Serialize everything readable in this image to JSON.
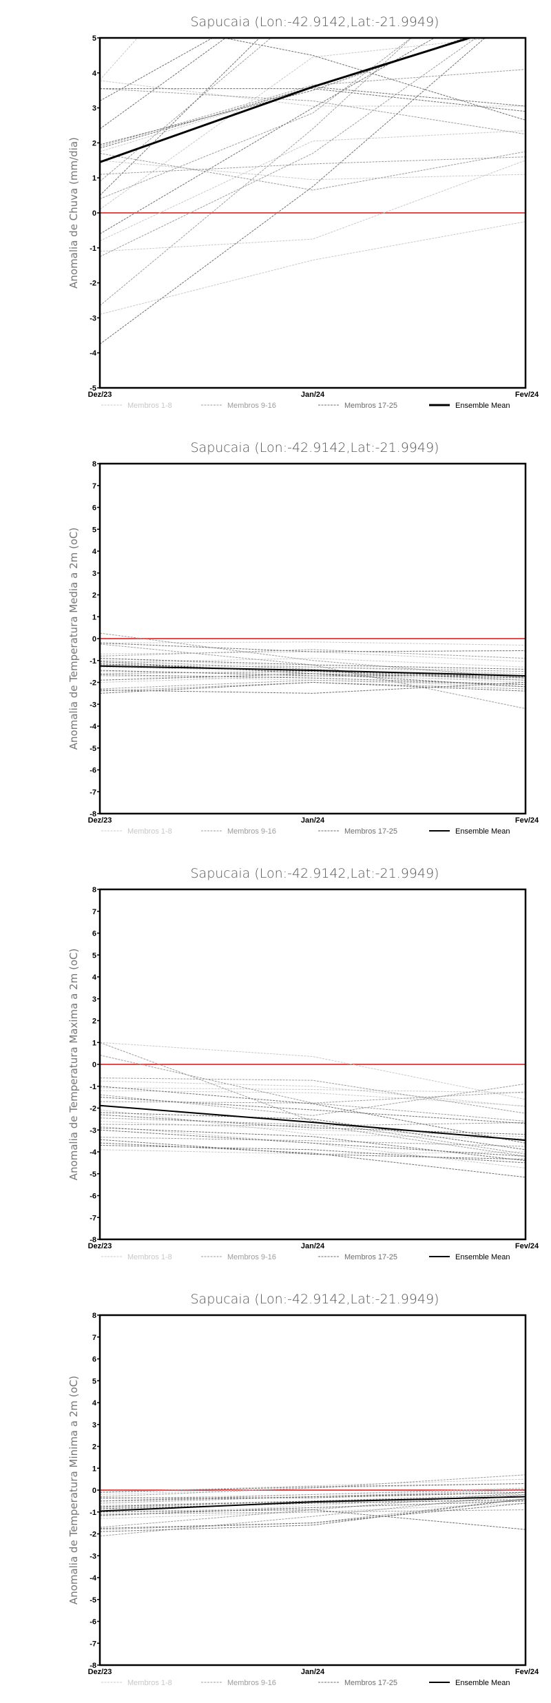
{
  "colors": {
    "light": "#c8c8c8",
    "medium": "#9c9c9c",
    "dark": "#6e6e6e",
    "mean": "#000000",
    "zero": "#e8484a"
  },
  "legend": [
    "Membros 1-8",
    "Membros 9-16",
    "Membros 17-25",
    "Ensemble Mean"
  ],
  "chart_data": [
    {
      "type": "line",
      "title": "Sapucaia (Lon:-42.9142,Lat:-21.9949)",
      "ylabel": "Anomalia de Chuva (mm/dia)",
      "categories": [
        "Dez/23",
        "Jan/24",
        "Fev/24"
      ],
      "ylim": [
        -5,
        5
      ],
      "yticks": [
        "-5",
        "-4",
        "-3",
        "-2",
        "-1",
        "0",
        "1",
        "2",
        "3",
        "4",
        "5"
      ],
      "mean": [
        1.45,
        3.6,
        5.5
      ],
      "mean_width": 3,
      "members": [
        [
          3.8,
          10.6,
          14
        ],
        [
          3.78,
          3.05,
          3.05
        ],
        [
          1.5,
          0.95,
          1.1
        ],
        [
          0.1,
          4.45,
          5.1
        ],
        [
          -0.8,
          2.05,
          2.35
        ],
        [
          -1.1,
          -0.75,
          1.5
        ],
        [
          -2.9,
          -1.35,
          -0.25
        ],
        [
          1.75,
          3.6,
          5.5
        ],
        [
          3.55,
          3.2,
          2.25
        ],
        [
          1.9,
          3.65,
          4.1
        ],
        [
          1.1,
          1.4,
          1.6
        ],
        [
          0.4,
          2.85,
          7.5
        ],
        [
          -1.25,
          1.7,
          6.0
        ],
        [
          -2.65,
          2.4,
          8.0
        ],
        [
          1.7,
          0.65,
          1.75
        ],
        [
          0.9,
          6.0,
          9.0
        ],
        [
          3.2,
          6.6,
          9.0
        ],
        [
          2.4,
          6.8,
          10
        ],
        [
          5.7,
          4.5,
          2.65
        ],
        [
          3.55,
          3.55,
          2.9
        ],
        [
          1.95,
          3.5,
          5.6
        ],
        [
          0.5,
          6.5,
          10
        ],
        [
          -3.75,
          0.75,
          6.0
        ],
        [
          1.85,
          3.6,
          3.05
        ],
        [
          -0.6,
          3.0,
          6.5
        ]
      ]
    },
    {
      "type": "line",
      "title": "Sapucaia (Lon:-42.9142,Lat:-21.9949)",
      "ylabel": "Anomalia de Temperatura Media a 2m (oC)",
      "categories": [
        "Dez/23",
        "Jan/24",
        "Fev/24"
      ],
      "ylim": [
        -8,
        8
      ],
      "yticks": [
        "-8",
        "-7",
        "-6",
        "-5",
        "-4",
        "-3",
        "-2",
        "-1",
        "0",
        "1",
        "2",
        "3",
        "4",
        "5",
        "6",
        "7",
        "8"
      ],
      "mean": [
        -1.25,
        -1.45,
        -1.7
      ],
      "mean_width": 2,
      "members": [
        [
          -0.2,
          -0.15,
          -0.3
        ],
        [
          -0.7,
          -0.6,
          -1.05
        ],
        [
          -1.1,
          -0.9,
          -1.3
        ],
        [
          -1.5,
          -1.6,
          -2.0
        ],
        [
          -1.7,
          -1.9,
          -2.2
        ],
        [
          -0.9,
          -1.3,
          -1.6
        ],
        [
          -2.0,
          -1.7,
          -1.9
        ],
        [
          -1.3,
          -1.5,
          -1.6
        ],
        [
          0.25,
          -1.0,
          -1.8
        ],
        [
          -0.8,
          -0.5,
          -0.9
        ],
        [
          -1.2,
          -1.3,
          -1.5
        ],
        [
          -1.6,
          -1.5,
          -1.9
        ],
        [
          -2.3,
          -1.9,
          -2.1
        ],
        [
          -2.4,
          -2.0,
          -2.3
        ],
        [
          -1.0,
          -1.4,
          -1.9
        ],
        [
          -0.25,
          -1.2,
          -3.2
        ],
        [
          -0.2,
          -0.6,
          -0.55
        ],
        [
          -0.9,
          -1.2,
          -1.4
        ],
        [
          -1.15,
          -1.5,
          -1.75
        ],
        [
          -1.45,
          -1.7,
          -1.7
        ],
        [
          -1.65,
          -1.8,
          -2.1
        ],
        [
          -2.35,
          -2.5,
          -2.0
        ],
        [
          -2.5,
          -2.0,
          -2.4
        ],
        [
          -1.9,
          -1.6,
          -1.8
        ],
        [
          -1.05,
          -1.6,
          -2.2
        ]
      ]
    },
    {
      "type": "line",
      "title": "Sapucaia (Lon:-42.9142,Lat:-21.9949)",
      "ylabel": "Anomalia de Temperatura Maxima a 2m (oC)",
      "categories": [
        "Dez/23",
        "Jan/24",
        "Fev/24"
      ],
      "ylim": [
        -8,
        8
      ],
      "yticks": [
        "-8",
        "-7",
        "-6",
        "-5",
        "-4",
        "-3",
        "-2",
        "-1",
        "0",
        "1",
        "2",
        "3",
        "4",
        "5",
        "6",
        "7",
        "8"
      ],
      "mean": [
        -1.88,
        -2.65,
        -3.47
      ],
      "mean_width": 2,
      "members": [
        [
          1.0,
          0.36,
          -1.6
        ],
        [
          -0.76,
          -1.0,
          -1.93
        ],
        [
          -1.07,
          -1.15,
          -1.3
        ],
        [
          -2.08,
          -3.2,
          -3.4
        ],
        [
          -2.84,
          -3.6,
          -4.74
        ],
        [
          -3.9,
          -4.1,
          -4.0
        ],
        [
          -1.2,
          -1.3,
          -1.9
        ],
        [
          -2.6,
          -3.0,
          -3.3
        ],
        [
          1.0,
          -2.6,
          -4.1
        ],
        [
          0.42,
          -1.77,
          -2.6
        ],
        [
          -0.62,
          -0.73,
          -2.24
        ],
        [
          -1.39,
          -2.34,
          -0.89
        ],
        [
          -1.7,
          -1.77,
          -1.26
        ],
        [
          -2.45,
          -2.76,
          -4.2
        ],
        [
          -2.74,
          -2.81,
          -2.66
        ],
        [
          -3.33,
          -3.49,
          -3.75
        ],
        [
          -3.44,
          -4.11,
          -4.34
        ],
        [
          -3.59,
          -4.06,
          -5.16
        ],
        [
          -1.5,
          -2.08,
          -2.7
        ],
        [
          -2.2,
          -2.5,
          -3.9
        ],
        [
          -2.9,
          -3.3,
          -4.4
        ],
        [
          -1.0,
          -1.8,
          -3.6
        ],
        [
          -3.0,
          -3.6,
          -4.2
        ],
        [
          -2.3,
          -2.9,
          -3.2
        ],
        [
          -3.7,
          -3.9,
          -4.5
        ]
      ]
    },
    {
      "type": "line",
      "title": "Sapucaia (Lon:-42.9142,Lat:-21.9949)",
      "ylabel": "Anomalia de Temperatura Minima a 2m (oC)",
      "categories": [
        "Dez/23",
        "Jan/24",
        "Fev/24"
      ],
      "ylim": [
        -8,
        8
      ],
      "yticks": [
        "-8",
        "-7",
        "-6",
        "-5",
        "-4",
        "-3",
        "-2",
        "-1",
        "0",
        "1",
        "2",
        "3",
        "4",
        "5",
        "6",
        "7",
        "8"
      ],
      "mean": [
        -0.96,
        -0.54,
        -0.3
      ],
      "mean_width": 2,
      "members": [
        [
          -0.1,
          0.2,
          0.5
        ],
        [
          -0.4,
          -0.2,
          0.1
        ],
        [
          -0.7,
          -0.5,
          -0.3
        ],
        [
          -1.0,
          -0.8,
          -0.5
        ],
        [
          -1.3,
          -1.0,
          -0.6
        ],
        [
          -0.2,
          0.1,
          0.3
        ],
        [
          -0.9,
          -0.6,
          -0.4
        ],
        [
          -1.2,
          -0.7,
          -0.2
        ],
        [
          -0.3,
          0.1,
          0.7
        ],
        [
          -0.6,
          -0.3,
          0.0
        ],
        [
          -0.8,
          -0.5,
          -0.2
        ],
        [
          -1.1,
          -1.0,
          -0.9
        ],
        [
          -1.7,
          -0.9,
          -0.1
        ],
        [
          -1.8,
          -1.5,
          -0.4
        ],
        [
          -2.1,
          -1.2,
          -0.2
        ],
        [
          -0.5,
          -0.2,
          0.05
        ],
        [
          -0.1,
          0.15,
          0.3
        ],
        [
          -0.5,
          -0.3,
          -0.1
        ],
        [
          -0.85,
          -0.6,
          -0.45
        ],
        [
          -1.15,
          -0.8,
          -0.5
        ],
        [
          -1.9,
          -1.6,
          -0.4
        ],
        [
          -1.75,
          -1.5,
          -0.6
        ],
        [
          -1.0,
          -0.9,
          -1.8
        ],
        [
          -0.35,
          -0.35,
          -0.1
        ],
        [
          -0.75,
          -0.5,
          -0.3
        ]
      ]
    }
  ]
}
